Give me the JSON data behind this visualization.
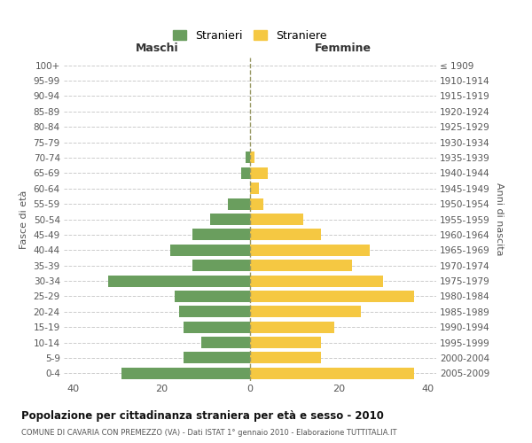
{
  "age_groups": [
    "100+",
    "95-99",
    "90-94",
    "85-89",
    "80-84",
    "75-79",
    "70-74",
    "65-69",
    "60-64",
    "55-59",
    "50-54",
    "45-49",
    "40-44",
    "35-39",
    "30-34",
    "25-29",
    "20-24",
    "15-19",
    "10-14",
    "5-9",
    "0-4"
  ],
  "birth_years": [
    "≤ 1909",
    "1910-1914",
    "1915-1919",
    "1920-1924",
    "1925-1929",
    "1930-1934",
    "1935-1939",
    "1940-1944",
    "1945-1949",
    "1950-1954",
    "1955-1959",
    "1960-1964",
    "1965-1969",
    "1970-1974",
    "1975-1979",
    "1980-1984",
    "1985-1989",
    "1990-1994",
    "1995-1999",
    "2000-2004",
    "2005-2009"
  ],
  "maschi": [
    0,
    0,
    0,
    0,
    0,
    0,
    1,
    2,
    0,
    5,
    9,
    13,
    18,
    13,
    32,
    17,
    16,
    15,
    11,
    15,
    29
  ],
  "femmine": [
    0,
    0,
    0,
    0,
    0,
    0,
    1,
    4,
    2,
    3,
    12,
    16,
    27,
    23,
    30,
    37,
    25,
    19,
    16,
    16,
    37
  ],
  "color_maschi": "#6a9e5e",
  "color_femmine": "#f5c842",
  "title": "Popolazione per cittadinanza straniera per età e sesso - 2010",
  "subtitle": "COMUNE DI CAVARIA CON PREMEZZO (VA) - Dati ISTAT 1° gennaio 2010 - Elaborazione TUTTITALIA.IT",
  "ylabel_left": "Fasce di età",
  "ylabel_right": "Anni di nascita",
  "xlabel_left": "Maschi",
  "xlabel_right": "Femmine",
  "legend_maschi": "Stranieri",
  "legend_femmine": "Straniere",
  "xlim": 42,
  "background_color": "#ffffff",
  "grid_color": "#cccccc"
}
